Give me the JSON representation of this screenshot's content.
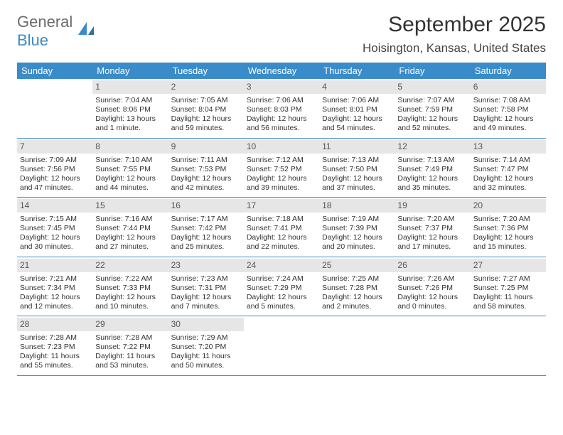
{
  "logo": {
    "text1": "General",
    "text2": "Blue"
  },
  "title": "September 2025",
  "location": "Hoisington, Kansas, United States",
  "colors": {
    "header_bg": "#3a8bc9",
    "daynum_bg": "#e6e6e6",
    "text": "#333333"
  },
  "day_names": [
    "Sunday",
    "Monday",
    "Tuesday",
    "Wednesday",
    "Thursday",
    "Friday",
    "Saturday"
  ],
  "weeks": [
    [
      null,
      {
        "n": "1",
        "sr": "Sunrise: 7:04 AM",
        "ss": "Sunset: 8:06 PM",
        "dl1": "Daylight: 13 hours",
        "dl2": "and 1 minute."
      },
      {
        "n": "2",
        "sr": "Sunrise: 7:05 AM",
        "ss": "Sunset: 8:04 PM",
        "dl1": "Daylight: 12 hours",
        "dl2": "and 59 minutes."
      },
      {
        "n": "3",
        "sr": "Sunrise: 7:06 AM",
        "ss": "Sunset: 8:03 PM",
        "dl1": "Daylight: 12 hours",
        "dl2": "and 56 minutes."
      },
      {
        "n": "4",
        "sr": "Sunrise: 7:06 AM",
        "ss": "Sunset: 8:01 PM",
        "dl1": "Daylight: 12 hours",
        "dl2": "and 54 minutes."
      },
      {
        "n": "5",
        "sr": "Sunrise: 7:07 AM",
        "ss": "Sunset: 7:59 PM",
        "dl1": "Daylight: 12 hours",
        "dl2": "and 52 minutes."
      },
      {
        "n": "6",
        "sr": "Sunrise: 7:08 AM",
        "ss": "Sunset: 7:58 PM",
        "dl1": "Daylight: 12 hours",
        "dl2": "and 49 minutes."
      }
    ],
    [
      {
        "n": "7",
        "sr": "Sunrise: 7:09 AM",
        "ss": "Sunset: 7:56 PM",
        "dl1": "Daylight: 12 hours",
        "dl2": "and 47 minutes."
      },
      {
        "n": "8",
        "sr": "Sunrise: 7:10 AM",
        "ss": "Sunset: 7:55 PM",
        "dl1": "Daylight: 12 hours",
        "dl2": "and 44 minutes."
      },
      {
        "n": "9",
        "sr": "Sunrise: 7:11 AM",
        "ss": "Sunset: 7:53 PM",
        "dl1": "Daylight: 12 hours",
        "dl2": "and 42 minutes."
      },
      {
        "n": "10",
        "sr": "Sunrise: 7:12 AM",
        "ss": "Sunset: 7:52 PM",
        "dl1": "Daylight: 12 hours",
        "dl2": "and 39 minutes."
      },
      {
        "n": "11",
        "sr": "Sunrise: 7:13 AM",
        "ss": "Sunset: 7:50 PM",
        "dl1": "Daylight: 12 hours",
        "dl2": "and 37 minutes."
      },
      {
        "n": "12",
        "sr": "Sunrise: 7:13 AM",
        "ss": "Sunset: 7:49 PM",
        "dl1": "Daylight: 12 hours",
        "dl2": "and 35 minutes."
      },
      {
        "n": "13",
        "sr": "Sunrise: 7:14 AM",
        "ss": "Sunset: 7:47 PM",
        "dl1": "Daylight: 12 hours",
        "dl2": "and 32 minutes."
      }
    ],
    [
      {
        "n": "14",
        "sr": "Sunrise: 7:15 AM",
        "ss": "Sunset: 7:45 PM",
        "dl1": "Daylight: 12 hours",
        "dl2": "and 30 minutes."
      },
      {
        "n": "15",
        "sr": "Sunrise: 7:16 AM",
        "ss": "Sunset: 7:44 PM",
        "dl1": "Daylight: 12 hours",
        "dl2": "and 27 minutes."
      },
      {
        "n": "16",
        "sr": "Sunrise: 7:17 AM",
        "ss": "Sunset: 7:42 PM",
        "dl1": "Daylight: 12 hours",
        "dl2": "and 25 minutes."
      },
      {
        "n": "17",
        "sr": "Sunrise: 7:18 AM",
        "ss": "Sunset: 7:41 PM",
        "dl1": "Daylight: 12 hours",
        "dl2": "and 22 minutes."
      },
      {
        "n": "18",
        "sr": "Sunrise: 7:19 AM",
        "ss": "Sunset: 7:39 PM",
        "dl1": "Daylight: 12 hours",
        "dl2": "and 20 minutes."
      },
      {
        "n": "19",
        "sr": "Sunrise: 7:20 AM",
        "ss": "Sunset: 7:37 PM",
        "dl1": "Daylight: 12 hours",
        "dl2": "and 17 minutes."
      },
      {
        "n": "20",
        "sr": "Sunrise: 7:20 AM",
        "ss": "Sunset: 7:36 PM",
        "dl1": "Daylight: 12 hours",
        "dl2": "and 15 minutes."
      }
    ],
    [
      {
        "n": "21",
        "sr": "Sunrise: 7:21 AM",
        "ss": "Sunset: 7:34 PM",
        "dl1": "Daylight: 12 hours",
        "dl2": "and 12 minutes."
      },
      {
        "n": "22",
        "sr": "Sunrise: 7:22 AM",
        "ss": "Sunset: 7:33 PM",
        "dl1": "Daylight: 12 hours",
        "dl2": "and 10 minutes."
      },
      {
        "n": "23",
        "sr": "Sunrise: 7:23 AM",
        "ss": "Sunset: 7:31 PM",
        "dl1": "Daylight: 12 hours",
        "dl2": "and 7 minutes."
      },
      {
        "n": "24",
        "sr": "Sunrise: 7:24 AM",
        "ss": "Sunset: 7:29 PM",
        "dl1": "Daylight: 12 hours",
        "dl2": "and 5 minutes."
      },
      {
        "n": "25",
        "sr": "Sunrise: 7:25 AM",
        "ss": "Sunset: 7:28 PM",
        "dl1": "Daylight: 12 hours",
        "dl2": "and 2 minutes."
      },
      {
        "n": "26",
        "sr": "Sunrise: 7:26 AM",
        "ss": "Sunset: 7:26 PM",
        "dl1": "Daylight: 12 hours",
        "dl2": "and 0 minutes."
      },
      {
        "n": "27",
        "sr": "Sunrise: 7:27 AM",
        "ss": "Sunset: 7:25 PM",
        "dl1": "Daylight: 11 hours",
        "dl2": "and 58 minutes."
      }
    ],
    [
      {
        "n": "28",
        "sr": "Sunrise: 7:28 AM",
        "ss": "Sunset: 7:23 PM",
        "dl1": "Daylight: 11 hours",
        "dl2": "and 55 minutes."
      },
      {
        "n": "29",
        "sr": "Sunrise: 7:28 AM",
        "ss": "Sunset: 7:22 PM",
        "dl1": "Daylight: 11 hours",
        "dl2": "and 53 minutes."
      },
      {
        "n": "30",
        "sr": "Sunrise: 7:29 AM",
        "ss": "Sunset: 7:20 PM",
        "dl1": "Daylight: 11 hours",
        "dl2": "and 50 minutes."
      },
      null,
      null,
      null,
      null
    ]
  ]
}
